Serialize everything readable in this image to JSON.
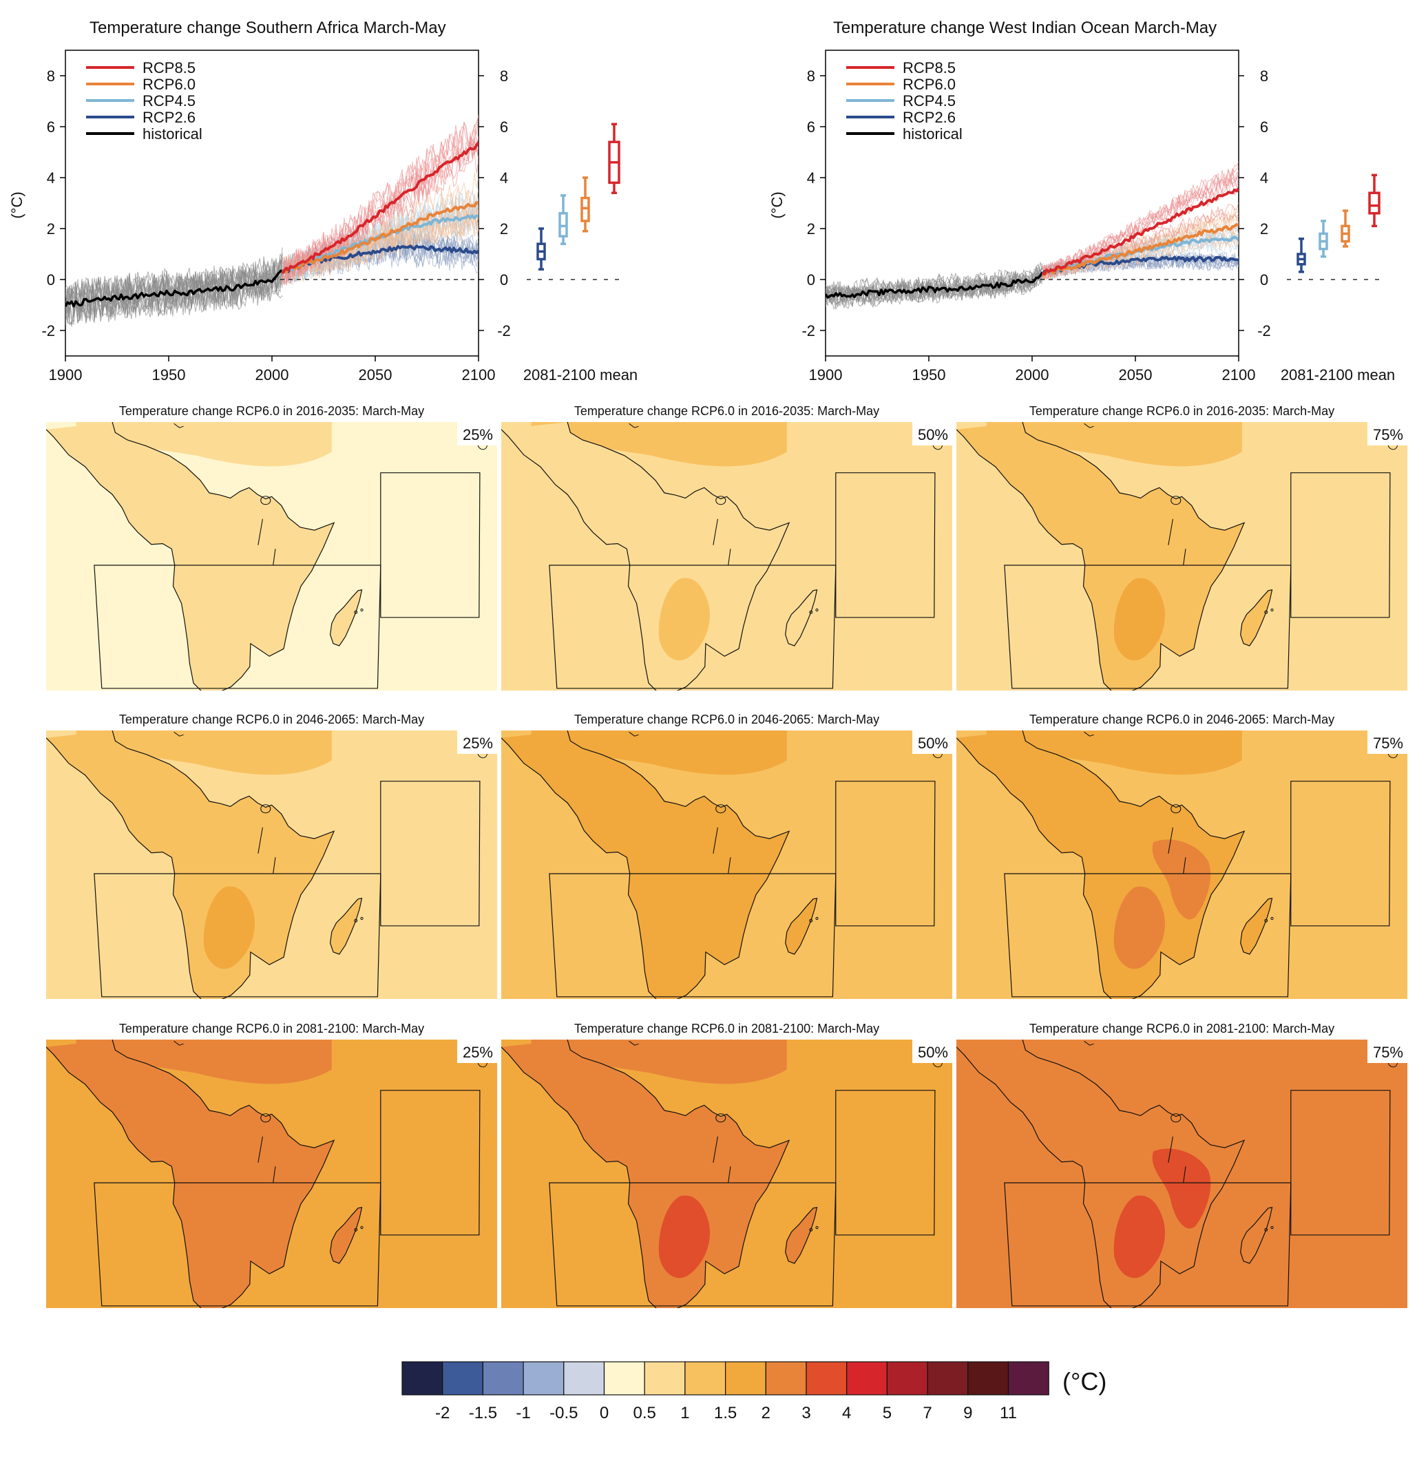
{
  "chart_data": [
    {
      "type": "line",
      "title": "Temperature change Southern Africa March-May",
      "ylabel": "(°C)",
      "xlim": [
        1900,
        2100
      ],
      "ylim": [
        -3,
        9
      ],
      "xticks": [
        "1900",
        "1950",
        "2000",
        "2050",
        "2100"
      ],
      "yticks": [
        "-2",
        "0",
        "2",
        "4",
        "6",
        "8"
      ],
      "legend_position": "top-left",
      "legend": [
        "RCP8.5",
        "RCP6.0",
        "RCP4.5",
        "RCP2.6",
        "historical"
      ],
      "series": [
        {
          "name": "historical",
          "color": "#000000",
          "x": [
            1900,
            1920,
            1940,
            1960,
            1980,
            2000,
            2005
          ],
          "y": [
            -1.0,
            -0.75,
            -0.6,
            -0.5,
            -0.35,
            0.0,
            0.3
          ]
        },
        {
          "name": "RCP2.6",
          "color": "#2b4b8c",
          "x": [
            2005,
            2020,
            2035,
            2050,
            2065,
            2080,
            2100
          ],
          "y": [
            0.3,
            0.7,
            0.9,
            1.1,
            1.3,
            1.2,
            1.1
          ]
        },
        {
          "name": "RCP4.5",
          "color": "#7fb5d5",
          "x": [
            2005,
            2020,
            2035,
            2050,
            2065,
            2080,
            2100
          ],
          "y": [
            0.3,
            0.75,
            1.2,
            1.6,
            2.0,
            2.3,
            2.5
          ]
        },
        {
          "name": "RCP6.0",
          "color": "#e8843a",
          "x": [
            2005,
            2020,
            2035,
            2050,
            2065,
            2080,
            2100
          ],
          "y": [
            0.3,
            0.7,
            1.1,
            1.6,
            2.1,
            2.6,
            3.0
          ]
        },
        {
          "name": "RCP8.5",
          "color": "#d7262b",
          "x": [
            2005,
            2020,
            2035,
            2050,
            2065,
            2080,
            2100
          ],
          "y": [
            0.3,
            0.9,
            1.6,
            2.5,
            3.4,
            4.3,
            5.3
          ]
        }
      ],
      "boxplot": {
        "label": "2081-2100 mean",
        "ylim": [
          -3,
          9
        ],
        "boxes": [
          {
            "name": "RCP2.6",
            "color": "#2b4b8c",
            "min": 0.4,
            "q1": 0.8,
            "median": 1.1,
            "q3": 1.4,
            "max": 2.0
          },
          {
            "name": "RCP4.5",
            "color": "#7fb5d5",
            "min": 1.4,
            "q1": 1.7,
            "median": 2.1,
            "q3": 2.6,
            "max": 3.3
          },
          {
            "name": "RCP6.0",
            "color": "#e8843a",
            "min": 1.9,
            "q1": 2.3,
            "median": 2.8,
            "q3": 3.2,
            "max": 4.0
          },
          {
            "name": "RCP8.5",
            "color": "#d7262b",
            "min": 3.4,
            "q1": 3.8,
            "median": 4.6,
            "q3": 5.4,
            "max": 6.1
          }
        ]
      }
    },
    {
      "type": "line",
      "title": "Temperature change West Indian Ocean March-May",
      "ylabel": "(°C)",
      "xlim": [
        1900,
        2100
      ],
      "ylim": [
        -3,
        9
      ],
      "xticks": [
        "1900",
        "1950",
        "2000",
        "2050",
        "2100"
      ],
      "yticks": [
        "-2",
        "0",
        "2",
        "4",
        "6",
        "8"
      ],
      "legend_position": "top-left",
      "legend": [
        "RCP8.5",
        "RCP6.0",
        "RCP4.5",
        "RCP2.6",
        "historical"
      ],
      "series": [
        {
          "name": "historical",
          "color": "#000000",
          "x": [
            1900,
            1920,
            1940,
            1960,
            1980,
            2000,
            2005
          ],
          "y": [
            -0.65,
            -0.55,
            -0.45,
            -0.35,
            -0.25,
            0.0,
            0.25
          ]
        },
        {
          "name": "RCP2.6",
          "color": "#2b4b8c",
          "x": [
            2005,
            2020,
            2035,
            2050,
            2065,
            2080,
            2100
          ],
          "y": [
            0.25,
            0.5,
            0.65,
            0.75,
            0.8,
            0.8,
            0.8
          ]
        },
        {
          "name": "RCP4.5",
          "color": "#7fb5d5",
          "x": [
            2005,
            2020,
            2035,
            2050,
            2065,
            2080,
            2100
          ],
          "y": [
            0.25,
            0.55,
            0.85,
            1.1,
            1.35,
            1.5,
            1.6
          ]
        },
        {
          "name": "RCP6.0",
          "color": "#e8843a",
          "x": [
            2005,
            2020,
            2035,
            2050,
            2065,
            2080,
            2100
          ],
          "y": [
            0.25,
            0.5,
            0.8,
            1.1,
            1.45,
            1.8,
            2.1
          ]
        },
        {
          "name": "RCP8.5",
          "color": "#d7262b",
          "x": [
            2005,
            2020,
            2035,
            2050,
            2065,
            2080,
            2100
          ],
          "y": [
            0.25,
            0.65,
            1.15,
            1.7,
            2.3,
            2.9,
            3.5
          ]
        }
      ],
      "boxplot": {
        "label": "2081-2100 mean",
        "ylim": [
          -3,
          9
        ],
        "boxes": [
          {
            "name": "RCP2.6",
            "color": "#2b4b8c",
            "min": 0.3,
            "q1": 0.6,
            "median": 0.8,
            "q3": 1.0,
            "max": 1.6
          },
          {
            "name": "RCP4.5",
            "color": "#7fb5d5",
            "min": 0.9,
            "q1": 1.2,
            "median": 1.5,
            "q3": 1.8,
            "max": 2.3
          },
          {
            "name": "RCP6.0",
            "color": "#e8843a",
            "min": 1.3,
            "q1": 1.5,
            "median": 1.8,
            "q3": 2.1,
            "max": 2.7
          },
          {
            "name": "RCP8.5",
            "color": "#d7262b",
            "min": 2.1,
            "q1": 2.6,
            "median": 2.9,
            "q3": 3.4,
            "max": 4.1
          }
        ]
      }
    },
    {
      "type": "heatmap",
      "maps": [
        {
          "title": "Temperature change RCP6.0 in 2016-2035: March-May",
          "percentile": "25%",
          "land": 0.7,
          "ocean": 0.4,
          "hot": 0.8
        },
        {
          "title": "Temperature change RCP6.0 in 2016-2035: March-May",
          "percentile": "50%",
          "land": 0.9,
          "ocean": 0.7,
          "hot": 1.0
        },
        {
          "title": "Temperature change RCP6.0 in 2016-2035: March-May",
          "percentile": "75%",
          "land": 1.2,
          "ocean": 0.9,
          "hot": 1.6
        },
        {
          "title": "Temperature change RCP6.0 in 2046-2065: March-May",
          "percentile": "25%",
          "land": 1.2,
          "ocean": 0.9,
          "hot": 1.6
        },
        {
          "title": "Temperature change RCP6.0 in 2046-2065: March-May",
          "percentile": "50%",
          "land": 1.6,
          "ocean": 1.2,
          "hot": 1.8
        },
        {
          "title": "Temperature change RCP6.0 in 2046-2065: March-May",
          "percentile": "75%",
          "land": 1.8,
          "ocean": 1.4,
          "hot": 2.3
        },
        {
          "title": "Temperature change RCP6.0 in 2081-2100: March-May",
          "percentile": "25%",
          "land": 2.2,
          "ocean": 1.6,
          "hot": 2.4
        },
        {
          "title": "Temperature change RCP6.0 in 2081-2100: March-May",
          "percentile": "50%",
          "land": 2.4,
          "ocean": 1.8,
          "hot": 3.3
        },
        {
          "title": "Temperature change RCP6.0 in 2081-2100: March-May",
          "percentile": "75%",
          "land": 2.7,
          "ocean": 2.4,
          "hot": 3.4
        }
      ]
    }
  ],
  "colorbar": {
    "unit": "(°C)",
    "colors": [
      "#1e2347",
      "#3d5a99",
      "#6b81b5",
      "#9aaed4",
      "#cdd5e4",
      "#fff6cf",
      "#fcdc95",
      "#f8c160",
      "#f1a93d",
      "#e8843a",
      "#e04e2b",
      "#d7262b",
      "#ab2029",
      "#7c1d23",
      "#5a1718",
      "#5a1b3f"
    ],
    "labels": [
      "-2",
      "-1.5",
      "-1",
      "-0.5",
      "0",
      "0.5",
      "1",
      "1.5",
      "2",
      "3",
      "4",
      "5",
      "7",
      "9",
      "11"
    ],
    "bounds": [
      -2,
      -1.5,
      -1,
      -0.5,
      0,
      0.5,
      1,
      1.5,
      2,
      3,
      4,
      5,
      7,
      9,
      11
    ]
  }
}
